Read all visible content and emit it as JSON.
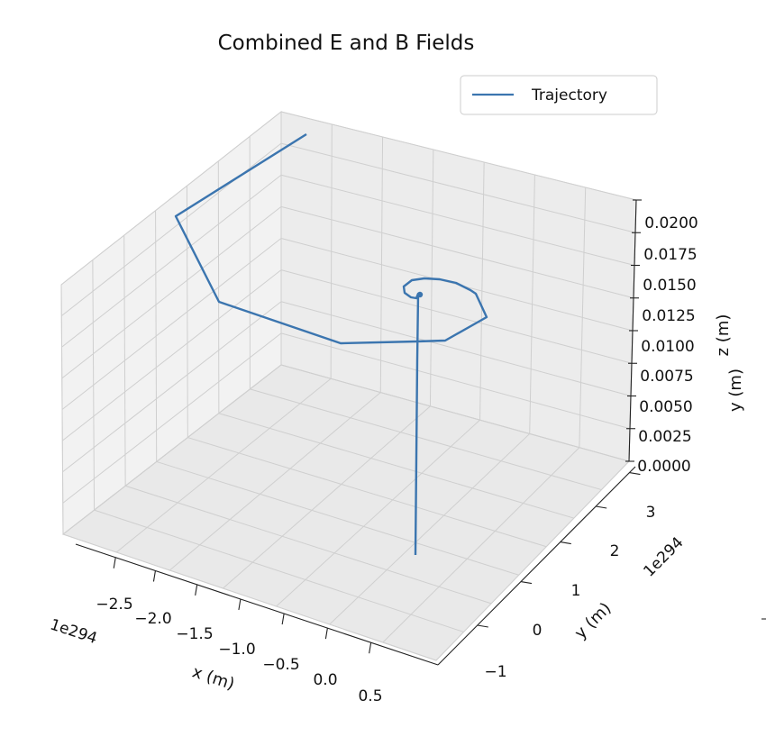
{
  "chart_data": {
    "type": "line",
    "projection": "3d",
    "title": "Combined E and B Fields",
    "xlabel": "x (m)",
    "ylabel": "y (m)",
    "zlabel": "z (m)",
    "x_offset_text": "1e294",
    "y_offset_text": "1e294",
    "x_ticks": [
      "−2.5",
      "−2.0",
      "−1.5",
      "−1.0",
      "−0.5",
      "0.0",
      "0.5"
    ],
    "y_ticks": [
      "−1",
      "0",
      "1",
      "2",
      "3"
    ],
    "z_ticks": [
      "0.0000",
      "0.0025",
      "0.0050",
      "0.0075",
      "0.0100",
      "0.0125",
      "0.0150",
      "0.0175",
      "0.0200"
    ],
    "z_lim": [
      0,
      0.02
    ],
    "grid": true,
    "legend_position": "top-right",
    "series": [
      {
        "name": "Trajectory",
        "color": "#3b75af",
        "description": "Particle trajectory: remains near origin in x-y while rising in z, then spirals outward with exponentially growing radius."
      }
    ]
  }
}
